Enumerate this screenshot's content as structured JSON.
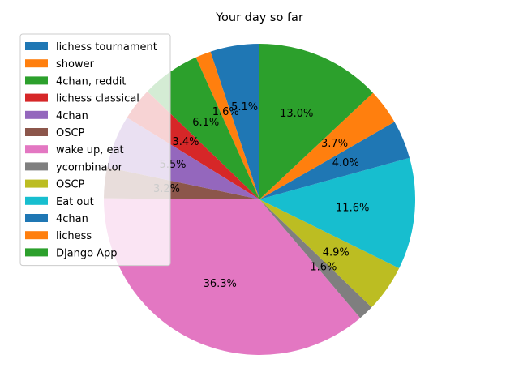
{
  "chart_data": {
    "type": "pie",
    "title": "Your day so far",
    "start_angle_deg": 90,
    "direction": "counterclockwise",
    "legend_position": "upper-left",
    "slices": [
      {
        "label": "lichess tournament",
        "value": 5.1,
        "pct_label": "5.1%",
        "color": "#1f77b4"
      },
      {
        "label": "shower",
        "value": 1.6,
        "pct_label": "1.6%",
        "color": "#ff7f0e"
      },
      {
        "label": "4chan, reddit",
        "value": 6.1,
        "pct_label": "6.1%",
        "color": "#2ca02c"
      },
      {
        "label": "lichess classical",
        "value": 3.4,
        "pct_label": "3.4%",
        "color": "#d62728"
      },
      {
        "label": "4chan",
        "value": 5.5,
        "pct_label": "5.5%",
        "color": "#9467bd"
      },
      {
        "label": "OSCP",
        "value": 3.2,
        "pct_label": "3.2%",
        "color": "#8c564b"
      },
      {
        "label": "wake up, eat",
        "value": 36.3,
        "pct_label": "36.3%",
        "color": "#e377c2"
      },
      {
        "label": "ycombinator",
        "value": 1.6,
        "pct_label": "1.6%",
        "color": "#7f7f7f"
      },
      {
        "label": "OSCP",
        "value": 4.9,
        "pct_label": "4.9%",
        "color": "#bcbd22"
      },
      {
        "label": "Eat out",
        "value": 11.6,
        "pct_label": "11.6%",
        "color": "#17becf"
      },
      {
        "label": "4chan",
        "value": 4.0,
        "pct_label": "4.0%",
        "color": "#1f77b4"
      },
      {
        "label": "lichess",
        "value": 3.7,
        "pct_label": "3.7%",
        "color": "#ff7f0e"
      },
      {
        "label": "Django App",
        "value": 13.0,
        "pct_label": "13.0%",
        "color": "#2ca02c"
      }
    ]
  }
}
